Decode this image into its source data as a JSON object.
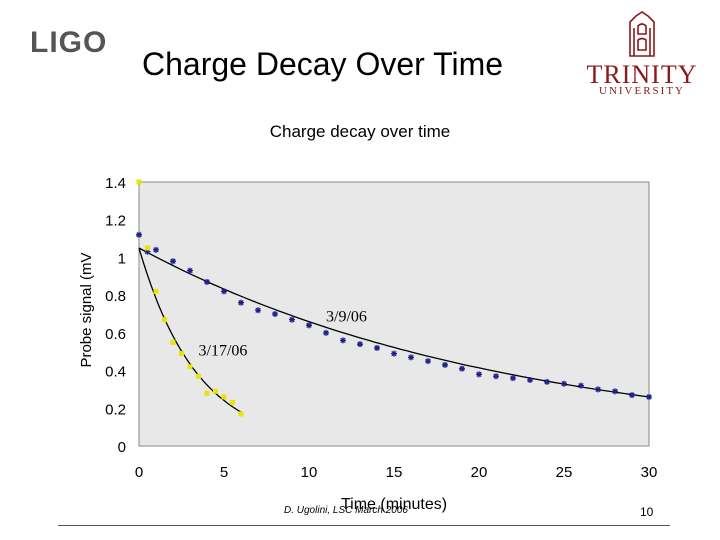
{
  "slide": {
    "title": "Charge Decay Over Time",
    "page_number": "10",
    "footer_credit": "D. Ugolini, LSC March 2006"
  },
  "logos": {
    "left": "LIGO",
    "right_main": "TRINITY",
    "right_sub": "UNIVERSITY"
  },
  "colors": {
    "series_a": "#1f1f8f",
    "series_b": "#e6e600",
    "fit_line": "#000000",
    "plot_bg": "#e8e8e8",
    "trinity": "#8b1a1a"
  },
  "chart_data": {
    "type": "scatter",
    "title": "Charge decay over time",
    "xlabel": "Time (minutes)",
    "ylabel": "Probe signal (mV",
    "xlim": [
      0,
      30
    ],
    "ylim": [
      0,
      1.4
    ],
    "xticks": [
      "0",
      "5",
      "10",
      "15",
      "20",
      "25",
      "30"
    ],
    "yticks": [
      "0",
      "0.2",
      "0.4",
      "0.6",
      "0.8",
      "1",
      "1.2",
      "1.4"
    ],
    "grid": false,
    "series": [
      {
        "name": "3/9/06",
        "marker": "star",
        "points": [
          [
            0,
            1.12
          ],
          [
            0.5,
            1.03
          ],
          [
            1,
            1.04
          ],
          [
            2,
            0.98
          ],
          [
            3,
            0.93
          ],
          [
            4,
            0.87
          ],
          [
            5,
            0.82
          ],
          [
            6,
            0.76
          ],
          [
            7,
            0.72
          ],
          [
            8,
            0.7
          ],
          [
            9,
            0.67
          ],
          [
            10,
            0.64
          ],
          [
            11,
            0.6
          ],
          [
            12,
            0.56
          ],
          [
            13,
            0.54
          ],
          [
            14,
            0.52
          ],
          [
            15,
            0.49
          ],
          [
            16,
            0.47
          ],
          [
            17,
            0.45
          ],
          [
            18,
            0.43
          ],
          [
            19,
            0.41
          ],
          [
            20,
            0.38
          ],
          [
            21,
            0.37
          ],
          [
            22,
            0.36
          ],
          [
            23,
            0.35
          ],
          [
            24,
            0.34
          ],
          [
            25,
            0.33
          ],
          [
            26,
            0.32
          ],
          [
            27,
            0.3
          ],
          [
            28,
            0.29
          ],
          [
            29,
            0.27
          ],
          [
            30,
            0.26
          ]
        ]
      },
      {
        "name": "3/17/06",
        "marker": "square",
        "points": [
          [
            0,
            1.4
          ],
          [
            0.5,
            1.05
          ],
          [
            1,
            0.82
          ],
          [
            1.5,
            0.67
          ],
          [
            2,
            0.55
          ],
          [
            2.5,
            0.49
          ],
          [
            3,
            0.42
          ],
          [
            3.5,
            0.37
          ],
          [
            4,
            0.28
          ],
          [
            4.5,
            0.29
          ],
          [
            5,
            0.26
          ],
          [
            5.5,
            0.23
          ],
          [
            6,
            0.17
          ]
        ]
      }
    ],
    "fits": [
      {
        "series": "3/9/06",
        "formula": "exp",
        "a": 1.05,
        "tau": 21.5,
        "x_range": [
          0,
          30
        ]
      },
      {
        "series": "3/17/06",
        "formula": "exp",
        "a": 1.05,
        "tau": 3.4,
        "x_range": [
          0,
          6.1
        ]
      }
    ],
    "annotations": [
      {
        "text": "3/9/06",
        "x": 11.0,
        "y": 0.66
      },
      {
        "text": "3/17/06",
        "x": 3.5,
        "y": 0.48
      }
    ]
  }
}
